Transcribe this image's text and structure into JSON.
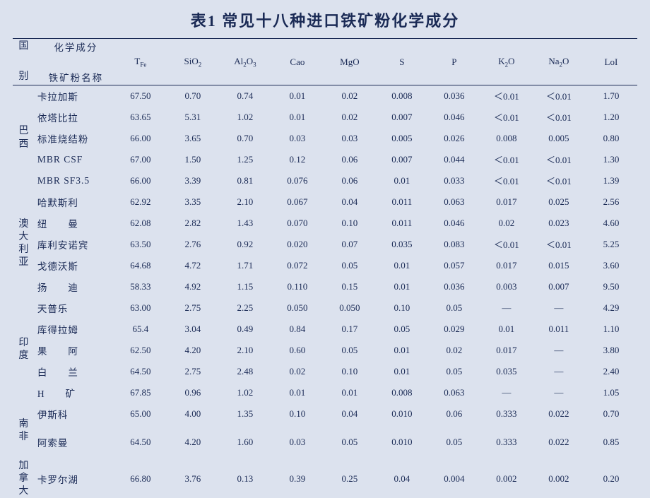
{
  "title": "表1    常见十八种进口铁矿粉化学成分",
  "header": {
    "country_top": "国",
    "country_bot": "别",
    "chem_label": "化学成分",
    "name_label": "铁矿粉名称",
    "cols": [
      "TFe",
      "SiO2",
      "Al2O3",
      "Cao",
      "MgO",
      "S",
      "P",
      "K2O",
      "Na2O",
      "LoI"
    ],
    "col_html": [
      "T<span class='sub'>Fe</span>",
      "SiO<span class='sub'>2</span>",
      "Al<span class='sub'>2</span>O<span class='sub'>3</span>",
      "Cao",
      "MgO",
      "S",
      "P",
      "K<span class='sub'>2</span>O",
      "Na<span class='sub'>2</span>O",
      "LoI"
    ]
  },
  "groups": [
    {
      "country": "巴西",
      "country_html": "巴<br>西",
      "rows": [
        {
          "name": "卡拉加斯",
          "v": [
            "67.50",
            "0.70",
            "0.74",
            "0.01",
            "0.02",
            "0.008",
            "0.036",
            "＜0.01",
            "＜0.01",
            "1.70"
          ]
        },
        {
          "name": "依塔比拉",
          "v": [
            "63.65",
            "5.31",
            "1.02",
            "0.01",
            "0.02",
            "0.007",
            "0.046",
            "＜0.01",
            "＜0.01",
            "1.20"
          ]
        },
        {
          "name": "标准烧结粉",
          "v": [
            "66.00",
            "3.65",
            "0.70",
            "0.03",
            "0.03",
            "0.005",
            "0.026",
            "0.008",
            "0.005",
            "0.80"
          ]
        },
        {
          "name": "MBR  CSF",
          "v": [
            "67.00",
            "1.50",
            "1.25",
            "0.12",
            "0.06",
            "0.007",
            "0.044",
            "＜0.01",
            "＜0.01",
            "1.30"
          ]
        },
        {
          "name": "MBR  SF3.5",
          "v": [
            "66.00",
            "3.39",
            "0.81",
            "0.076",
            "0.06",
            "0.01",
            "0.033",
            "＜0.01",
            "＜0.01",
            "1.39"
          ]
        }
      ]
    },
    {
      "country": "澳大利亚",
      "country_html": "澳<br>大<br>利<br>亚",
      "rows": [
        {
          "name": "哈默斯利",
          "v": [
            "62.92",
            "3.35",
            "2.10",
            "0.067",
            "0.04",
            "0.011",
            "0.063",
            "0.017",
            "0.025",
            "2.56"
          ]
        },
        {
          "name": "纽　　曼",
          "v": [
            "62.08",
            "2.82",
            "1.43",
            "0.070",
            "0.10",
            "0.011",
            "0.046",
            "0.02",
            "0.023",
            "4.60"
          ]
        },
        {
          "name": "库利安诺宾",
          "v": [
            "63.50",
            "2.76",
            "0.92",
            "0.020",
            "0.07",
            "0.035",
            "0.083",
            "＜0.01",
            "＜0.01",
            "5.25"
          ]
        },
        {
          "name": "戈德沃斯",
          "v": [
            "64.68",
            "4.72",
            "1.71",
            "0.072",
            "0.05",
            "0.01",
            "0.057",
            "0.017",
            "0.015",
            "3.60"
          ]
        },
        {
          "name": "扬　　迪",
          "v": [
            "58.33",
            "4.92",
            "1.15",
            "0.110",
            "0.15",
            "0.01",
            "0.036",
            "0.003",
            "0.007",
            "9.50"
          ]
        }
      ]
    },
    {
      "country": "印度",
      "country_html": "印<br>度",
      "rows": [
        {
          "name": "天普乐",
          "v": [
            "63.00",
            "2.75",
            "2.25",
            "0.050",
            "0.050",
            "0.10",
            "0.05",
            "—",
            "—",
            "4.29"
          ]
        },
        {
          "name": "库得拉姆",
          "v": [
            "65.4",
            "3.04",
            "0.49",
            "0.84",
            "0.17",
            "0.05",
            "0.029",
            "0.01",
            "0.011",
            "1.10"
          ]
        },
        {
          "name": "果　　阿",
          "v": [
            "62.50",
            "4.20",
            "2.10",
            "0.60",
            "0.05",
            "0.01",
            "0.02",
            "0.017",
            "—",
            "3.80"
          ]
        },
        {
          "name": "白　　兰",
          "v": [
            "64.50",
            "2.75",
            "2.48",
            "0.02",
            "0.10",
            "0.01",
            "0.05",
            "0.035",
            "—",
            "2.40"
          ]
        },
        {
          "name": "H　　矿",
          "v": [
            "67.85",
            "0.96",
            "1.02",
            "0.01",
            "0.01",
            "0.008",
            "0.063",
            "—",
            "—",
            "1.05"
          ]
        }
      ]
    },
    {
      "country": "南非",
      "country_html": "南<br>非",
      "rows": [
        {
          "name": "伊斯科",
          "v": [
            "65.00",
            "4.00",
            "1.35",
            "0.10",
            "0.04",
            "0.010",
            "0.06",
            "0.333",
            "0.022",
            "0.70"
          ]
        },
        {
          "name": "阿索曼",
          "v": [
            "64.50",
            "4.20",
            "1.60",
            "0.03",
            "0.05",
            "0.010",
            "0.05",
            "0.333",
            "0.022",
            "0.85"
          ],
          "tall": true
        }
      ]
    },
    {
      "country": "加拿大",
      "country_html": "加<br>拿<br>大",
      "rows": [
        {
          "name": "卡罗尔湖",
          "v": [
            "66.80",
            "3.76",
            "0.13",
            "0.39",
            "0.25",
            "0.04",
            "0.004",
            "0.002",
            "0.002",
            "0.20"
          ],
          "tall": true
        }
      ]
    }
  ],
  "style": {
    "bg": "#dce2ee",
    "fg": "#1a2a55",
    "title_fontsize": 22,
    "body_fontsize": 13,
    "border_color": "#1a2a55"
  }
}
